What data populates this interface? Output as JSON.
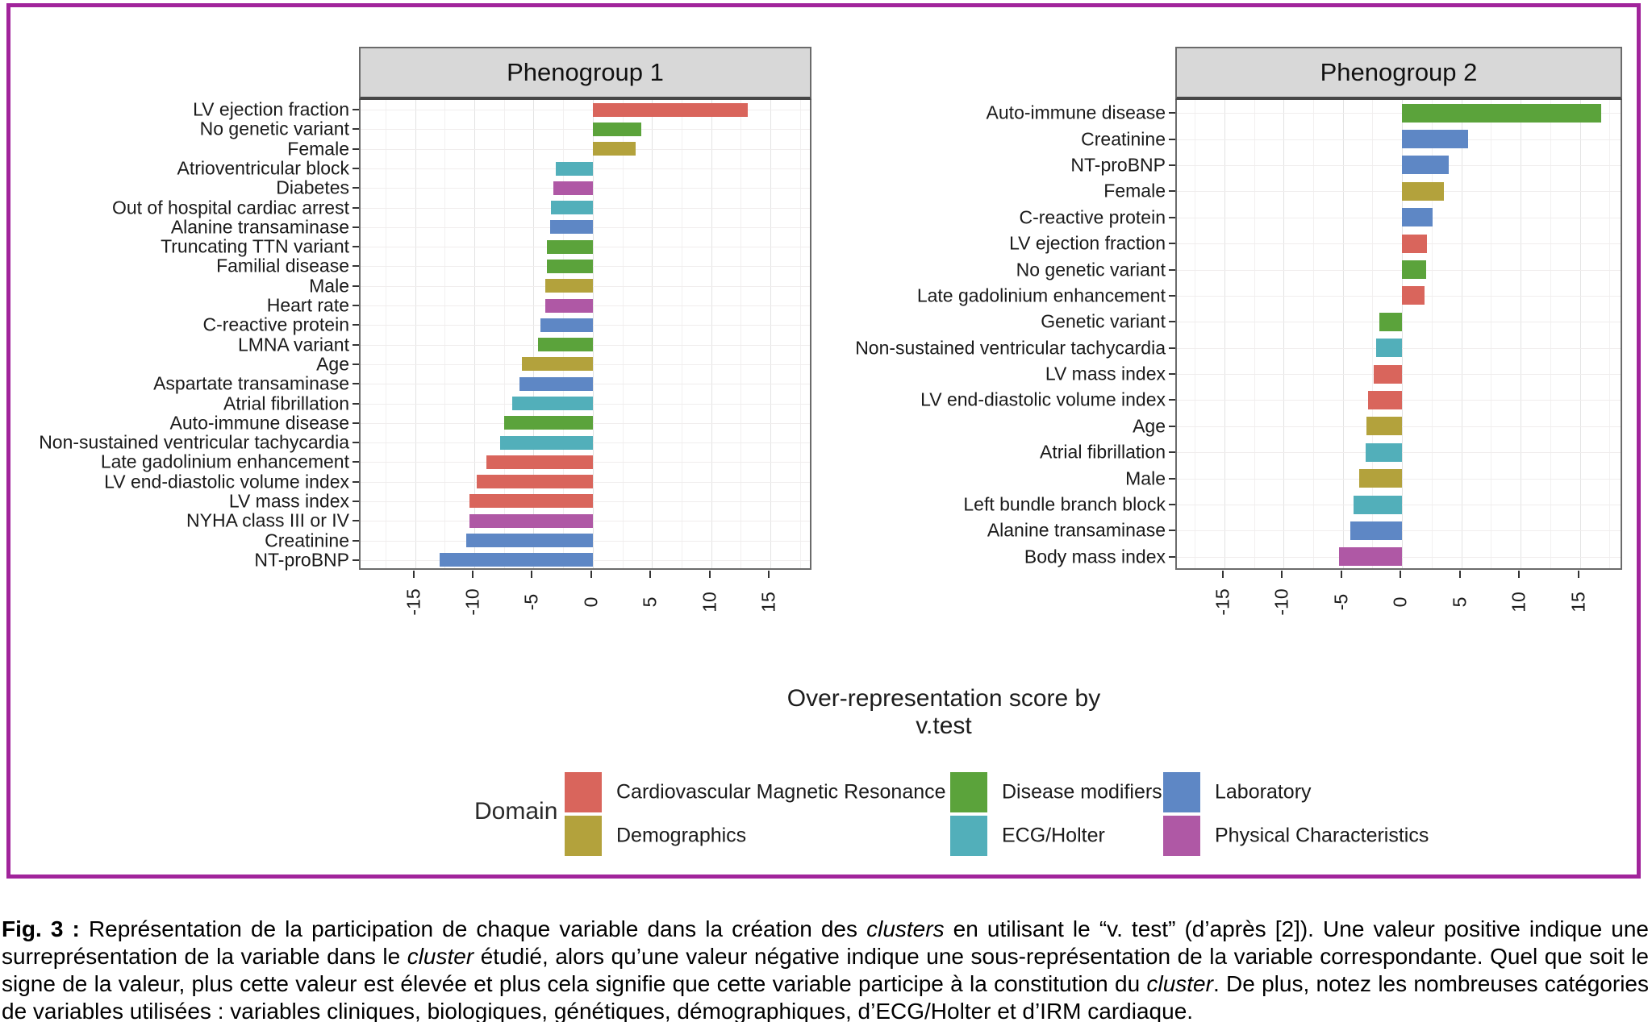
{
  "axis_title": "Over-representation score by v.test",
  "legend": {
    "title": "Domain",
    "items": [
      {
        "label": "Cardiovascular Magnetic Resonance",
        "color": "#d9655c"
      },
      {
        "label": "Demographics",
        "color": "#b3a23c"
      },
      {
        "label": "Disease modifiers",
        "color": "#5ba33b"
      },
      {
        "label": "ECG/Holter",
        "color": "#52afba"
      },
      {
        "label": "Laboratory",
        "color": "#5e87c5"
      },
      {
        "label": "Physical Characteristics",
        "color": "#af58a5"
      }
    ]
  },
  "frame_color": "#a1249b",
  "chart_data": [
    {
      "type": "bar",
      "orientation": "horizontal",
      "title": "Phenogroup 1",
      "xlabel": "Over-representation score by v.test",
      "xlim": [
        -19.6,
        18.6
      ],
      "xticks": [
        -15,
        -10,
        -5,
        0,
        5,
        10,
        15
      ],
      "grid": true,
      "categories": [
        "LV ejection fraction",
        "No genetic variant",
        "Female",
        "Atrioventricular block",
        "Diabetes",
        "Out of hospital cardiac arrest",
        "Alanine transaminase",
        "Truncating TTN variant",
        "Familial disease",
        "Male",
        "Heart rate",
        "C-reactive protein",
        "LMNA variant",
        "Age",
        "Aspartate transaminase",
        "Atrial fibrillation",
        "Auto-immune disease",
        "Non-sustained ventricular tachycardia",
        "Late gadolinium enhancement",
        "LV end-diastolic volume index",
        "LV mass index",
        "NYHA class III or IV",
        "Creatinine",
        "NT-proBNP"
      ],
      "values": [
        13.1,
        4.1,
        3.6,
        -3.1,
        -3.3,
        -3.5,
        -3.6,
        -3.9,
        -3.9,
        -4.0,
        -4.0,
        -4.4,
        -4.6,
        -6.0,
        -6.2,
        -6.8,
        -7.5,
        -7.8,
        -9.0,
        -9.8,
        -10.4,
        -10.4,
        -10.7,
        -12.9
      ],
      "domains": [
        "Cardiovascular Magnetic Resonance",
        "Disease modifiers",
        "Demographics",
        "ECG/Holter",
        "Physical Characteristics",
        "ECG/Holter",
        "Laboratory",
        "Disease modifiers",
        "Disease modifiers",
        "Demographics",
        "Physical Characteristics",
        "Laboratory",
        "Disease modifiers",
        "Demographics",
        "Laboratory",
        "ECG/Holter",
        "Disease modifiers",
        "ECG/Holter",
        "Cardiovascular Magnetic Resonance",
        "Cardiovascular Magnetic Resonance",
        "Cardiovascular Magnetic Resonance",
        "Physical Characteristics",
        "Laboratory",
        "Laboratory"
      ]
    },
    {
      "type": "bar",
      "orientation": "horizontal",
      "title": "Phenogroup 2",
      "xlabel": "Over-representation score by v.test",
      "xlim": [
        -19.0,
        18.7
      ],
      "xticks": [
        -15,
        -10,
        -5,
        0,
        5,
        10,
        15
      ],
      "grid": true,
      "categories": [
        "Auto-immune disease",
        "Creatinine",
        "NT-proBNP",
        "Female",
        "C-reactive protein",
        "LV ejection fraction",
        "No genetic variant",
        "Late gadolinium enhancement",
        "Genetic variant",
        "Non-sustained ventricular tachycardia",
        "LV mass index",
        "LV end-diastolic volume index",
        "Age",
        "Atrial fibrillation",
        "Male",
        "Left bundle branch block",
        "Alanine transaminase",
        "Body mass index"
      ],
      "values": [
        16.8,
        5.6,
        3.9,
        3.5,
        2.6,
        2.1,
        2.0,
        1.9,
        -1.9,
        -2.2,
        -2.4,
        -2.9,
        -3.0,
        -3.1,
        -3.6,
        -4.1,
        -4.4,
        -5.3
      ],
      "domains": [
        "Disease modifiers",
        "Laboratory",
        "Laboratory",
        "Demographics",
        "Laboratory",
        "Cardiovascular Magnetic Resonance",
        "Disease modifiers",
        "Cardiovascular Magnetic Resonance",
        "Disease modifiers",
        "ECG/Holter",
        "Cardiovascular Magnetic Resonance",
        "Cardiovascular Magnetic Resonance",
        "Demographics",
        "ECG/Holter",
        "Demographics",
        "ECG/Holter",
        "Laboratory",
        "Physical Characteristics"
      ]
    }
  ],
  "caption": {
    "segments": [
      {
        "text": "Fig. 3 :",
        "bold": true
      },
      {
        "text": " Représentation de la participation de chaque variable dans la création des "
      },
      {
        "text": "clusters",
        "italic": true
      },
      {
        "text": " en utilisant le “v. test” (d’après [2]). Une valeur positive indique une surreprésentation de la variable dans le "
      },
      {
        "text": "cluster",
        "italic": true
      },
      {
        "text": " étudié, alors qu’une valeur négative indique une sous-représentation de la variable correspondante. Quel que soit le signe de la valeur, plus cette valeur est élevée et plus cela signifie que cette variable participe à la constitution du "
      },
      {
        "text": "cluster",
        "italic": true
      },
      {
        "text": ". De plus, notez les nombreuses catégories de variables utilisées : variables cliniques, biologiques, génétiques, démographiques, d’ECG/Holter et d’IRM cardiaque."
      }
    ]
  }
}
